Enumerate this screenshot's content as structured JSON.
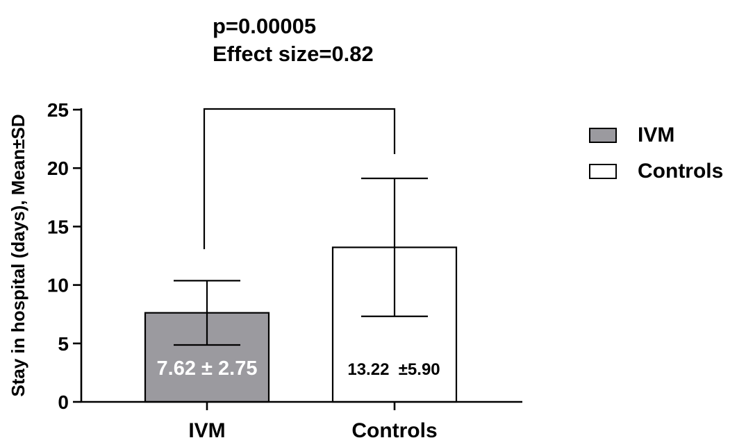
{
  "annotations": {
    "pvalue": "p=0.00005",
    "effect_size": "Effect size=0.82"
  },
  "legend": {
    "items": [
      {
        "label": "IVM",
        "color": "#9b9a9f"
      },
      {
        "label": "Controls",
        "color": "#ffffff"
      }
    ]
  },
  "chart_data": {
    "type": "bar",
    "categories": [
      "IVM",
      "Controls"
    ],
    "values": [
      7.62,
      13.22
    ],
    "errors": [
      2.75,
      5.9
    ],
    "bar_labels": [
      "7.62 ± 2.75",
      "13.22  ±5.90"
    ],
    "colors": [
      "#9b9a9f",
      "#ffffff"
    ],
    "bar_label_colors": [
      "#ffffff",
      "#000000"
    ],
    "ylabel": "Stay in hospital (days), Mean±SD",
    "xlabel": "",
    "ylim": [
      0,
      25
    ],
    "yticks": [
      0,
      5,
      10,
      15,
      20,
      25
    ],
    "grid": false,
    "legend_position": "right"
  }
}
